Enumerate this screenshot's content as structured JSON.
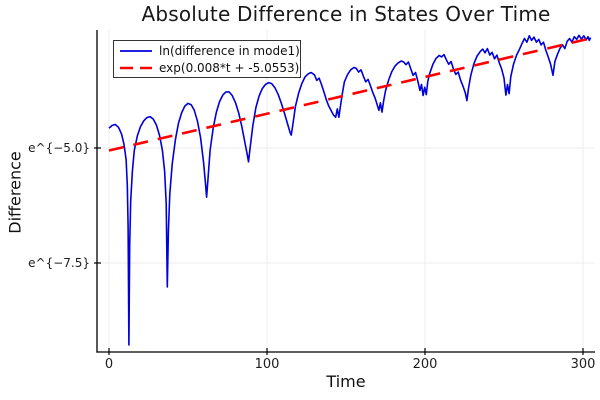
{
  "title": "Absolute Difference in States Over Time",
  "chart_data": {
    "type": "line",
    "title": "Absolute Difference in States Over Time",
    "xlabel": "Time",
    "ylabel": "Difference",
    "x_axis": {
      "lim": [
        -7.6,
        307.6
      ],
      "ticks": [
        {
          "label": "0",
          "t": 0
        },
        {
          "label": "100",
          "t": 100
        },
        {
          "label": "200",
          "t": 200
        },
        {
          "label": "300",
          "t": 300
        }
      ]
    },
    "y_axis": {
      "scale": "ln",
      "lim_ln": [
        -9.435,
        -2.435
      ],
      "ticks": [
        {
          "label": "e^{−5.0}",
          "ln": -5.0
        },
        {
          "label": "e^{−7.5}",
          "ln": -7.5
        }
      ]
    },
    "grid": true,
    "legend_position": "top-left",
    "axis_color": "#000000",
    "grid_color": "#ededed",
    "series": [
      {
        "name": "ln(difference in mode1)",
        "color": "#0000dd",
        "style": "solid",
        "width": 1.6,
        "points": [
          [
            0,
            -4.57
          ],
          [
            2,
            -4.51
          ],
          [
            4,
            -4.49
          ],
          [
            6,
            -4.55
          ],
          [
            8,
            -4.7
          ],
          [
            9.5,
            -4.92
          ],
          [
            10.8,
            -5.25
          ],
          [
            11.6,
            -5.8
          ],
          [
            12.1,
            -6.7
          ],
          [
            12.6,
            -9.28
          ],
          [
            13.1,
            -7.1
          ],
          [
            13.7,
            -6.15
          ],
          [
            14.8,
            -5.5
          ],
          [
            16,
            -5.05
          ],
          [
            18,
            -4.73
          ],
          [
            20,
            -4.53
          ],
          [
            22,
            -4.41
          ],
          [
            24,
            -4.34
          ],
          [
            26,
            -4.32
          ],
          [
            28,
            -4.37
          ],
          [
            30,
            -4.5
          ],
          [
            32,
            -4.73
          ],
          [
            33.8,
            -5.05
          ],
          [
            35.2,
            -5.5
          ],
          [
            36.2,
            -6.2
          ],
          [
            36.9,
            -8.02
          ],
          [
            37.6,
            -6.8
          ],
          [
            38.5,
            -6.0
          ],
          [
            40,
            -5.35
          ],
          [
            42,
            -4.82
          ],
          [
            44,
            -4.46
          ],
          [
            46,
            -4.23
          ],
          [
            48,
            -4.09
          ],
          [
            50,
            -4.03
          ],
          [
            52,
            -4.06
          ],
          [
            54,
            -4.18
          ],
          [
            56,
            -4.42
          ],
          [
            58,
            -4.78
          ],
          [
            59.8,
            -5.3
          ],
          [
            61,
            -5.75
          ],
          [
            61.8,
            -6.07
          ],
          [
            62.6,
            -5.7
          ],
          [
            64,
            -5.05
          ],
          [
            66,
            -4.55
          ],
          [
            68,
            -4.22
          ],
          [
            70,
            -3.99
          ],
          [
            72,
            -3.85
          ],
          [
            74,
            -3.78
          ],
          [
            76,
            -3.78
          ],
          [
            78,
            -3.86
          ],
          [
            80,
            -4.01
          ],
          [
            82,
            -4.23
          ],
          [
            84,
            -4.52
          ],
          [
            86,
            -4.88
          ],
          [
            87.5,
            -5.15
          ],
          [
            88.3,
            -5.3
          ],
          [
            89.3,
            -5.0
          ],
          [
            91,
            -4.52
          ],
          [
            93,
            -4.12
          ],
          [
            95,
            -3.87
          ],
          [
            97,
            -3.71
          ],
          [
            99,
            -3.62
          ],
          [
            101,
            -3.58
          ],
          [
            103,
            -3.6
          ],
          [
            105,
            -3.69
          ],
          [
            107,
            -3.83
          ],
          [
            109,
            -4.02
          ],
          [
            111,
            -4.24
          ],
          [
            113,
            -4.47
          ],
          [
            114.5,
            -4.65
          ],
          [
            115.3,
            -4.72
          ],
          [
            116.3,
            -4.5
          ],
          [
            118,
            -4.1
          ],
          [
            120,
            -3.81
          ],
          [
            122,
            -3.6
          ],
          [
            124,
            -3.46
          ],
          [
            126,
            -3.39
          ],
          [
            128,
            -3.36
          ],
          [
            130,
            -3.41
          ],
          [
            131.5,
            -3.53
          ],
          [
            133,
            -3.48
          ],
          [
            134.5,
            -3.62
          ],
          [
            136,
            -3.78
          ],
          [
            137.5,
            -3.95
          ],
          [
            139,
            -4.08
          ],
          [
            140.5,
            -4.18
          ],
          [
            142,
            -4.28
          ],
          [
            143.5,
            -4.33
          ],
          [
            144.5,
            -4.15
          ],
          [
            145.5,
            -4.33
          ],
          [
            146.5,
            -4.08
          ],
          [
            147.5,
            -3.85
          ],
          [
            149,
            -3.56
          ],
          [
            151,
            -3.4
          ],
          [
            153,
            -3.3
          ],
          [
            155,
            -3.25
          ],
          [
            156.5,
            -3.27
          ],
          [
            158,
            -3.35
          ],
          [
            159.5,
            -3.3
          ],
          [
            161,
            -3.44
          ],
          [
            162.5,
            -3.56
          ],
          [
            164,
            -3.51
          ],
          [
            165.5,
            -3.65
          ],
          [
            167,
            -3.8
          ],
          [
            168.5,
            -3.92
          ],
          [
            169.8,
            -4.07
          ],
          [
            170.8,
            -4.18
          ],
          [
            171.8,
            -4.02
          ],
          [
            172.8,
            -4.22
          ],
          [
            173.8,
            -3.98
          ],
          [
            175,
            -3.76
          ],
          [
            177,
            -3.52
          ],
          [
            179,
            -3.34
          ],
          [
            181,
            -3.22
          ],
          [
            183,
            -3.15
          ],
          [
            185,
            -3.11
          ],
          [
            186.5,
            -3.13
          ],
          [
            188,
            -3.19
          ],
          [
            189.5,
            -3.13
          ],
          [
            191,
            -3.28
          ],
          [
            192.5,
            -3.42
          ],
          [
            194,
            -3.36
          ],
          [
            195.5,
            -3.55
          ],
          [
            196.8,
            -3.75
          ],
          [
            197.8,
            -3.62
          ],
          [
            198.8,
            -3.86
          ],
          [
            199.8,
            -3.68
          ],
          [
            200.8,
            -3.84
          ],
          [
            201.8,
            -3.55
          ],
          [
            203,
            -3.38
          ],
          [
            205,
            -3.18
          ],
          [
            207,
            -3.05
          ],
          [
            209,
            -2.99
          ],
          [
            210.5,
            -3.02
          ],
          [
            212,
            -2.97
          ],
          [
            213.5,
            -3.08
          ],
          [
            215,
            -3.18
          ],
          [
            216.5,
            -3.12
          ],
          [
            218,
            -3.28
          ],
          [
            219.5,
            -3.4
          ],
          [
            221,
            -3.35
          ],
          [
            222.5,
            -3.52
          ],
          [
            224,
            -3.65
          ],
          [
            225.5,
            -3.8
          ],
          [
            226.5,
            -3.97
          ],
          [
            227.5,
            -3.72
          ],
          [
            229,
            -3.42
          ],
          [
            231,
            -3.16
          ],
          [
            233,
            -3.0
          ],
          [
            235,
            -2.9
          ],
          [
            236.5,
            -2.85
          ],
          [
            238,
            -2.93
          ],
          [
            239.5,
            -2.84
          ],
          [
            241,
            -2.98
          ],
          [
            242.5,
            -2.92
          ],
          [
            244,
            -3.06
          ],
          [
            245.5,
            -2.98
          ],
          [
            247,
            -3.15
          ],
          [
            248.5,
            -3.28
          ],
          [
            250,
            -3.48
          ],
          [
            251.2,
            -3.85
          ],
          [
            252.2,
            -3.62
          ],
          [
            253.2,
            -3.82
          ],
          [
            254.3,
            -3.45
          ],
          [
            256,
            -3.18
          ],
          [
            258,
            -2.98
          ],
          [
            260,
            -2.84
          ],
          [
            261.5,
            -2.72
          ],
          [
            263,
            -2.62
          ],
          [
            264.5,
            -2.7
          ],
          [
            266,
            -2.56
          ],
          [
            267.5,
            -2.66
          ],
          [
            269,
            -2.59
          ],
          [
            270.5,
            -2.7
          ],
          [
            272,
            -2.64
          ],
          [
            273.5,
            -2.76
          ],
          [
            275,
            -2.7
          ],
          [
            276.5,
            -2.88
          ],
          [
            278,
            -3.02
          ],
          [
            279.5,
            -3.18
          ],
          [
            281,
            -3.42
          ],
          [
            282.2,
            -3.12
          ],
          [
            284,
            -2.95
          ],
          [
            285.5,
            -2.83
          ],
          [
            287,
            -2.76
          ],
          [
            288.5,
            -2.84
          ],
          [
            290,
            -2.68
          ],
          [
            291.5,
            -2.62
          ],
          [
            293,
            -2.7
          ],
          [
            294.5,
            -2.58
          ],
          [
            296,
            -2.64
          ],
          [
            297.5,
            -2.55
          ],
          [
            299,
            -2.63
          ],
          [
            300.5,
            -2.56
          ],
          [
            302,
            -2.65
          ],
          [
            303.2,
            -2.58
          ],
          [
            304,
            -2.66
          ],
          [
            304.8,
            -2.6
          ]
        ]
      },
      {
        "name": "exp(0.008*t + -5.0553)",
        "color": "#fe0000",
        "style": "dashed",
        "width": 2.6,
        "slope": 0.008,
        "intercept": -5.0553,
        "points": [
          [
            0,
            -5.0553
          ],
          [
            305,
            -2.6153
          ]
        ]
      }
    ]
  }
}
